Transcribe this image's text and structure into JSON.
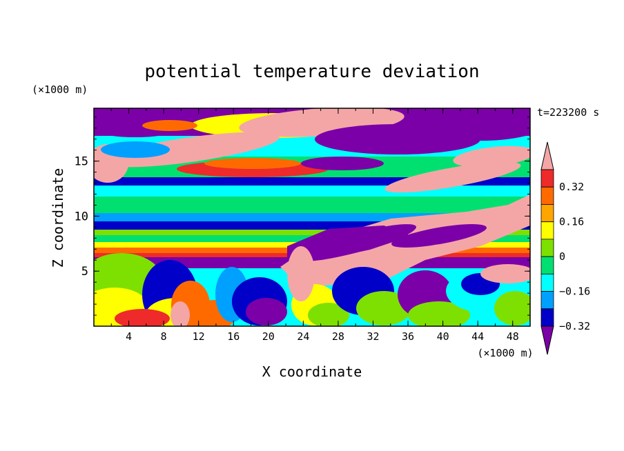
{
  "chart_data": {
    "type": "heatmap",
    "title": "potential temperature deviation",
    "xlabel": "X coordinate",
    "ylabel": "Z coordinate",
    "x_unit": "(×1000 m)",
    "y_unit": "(×1000 m)",
    "time_label": "t=223200 s",
    "xlim": [
      0,
      50
    ],
    "ylim": [
      0,
      19.8
    ],
    "x_ticks": [
      4,
      8,
      12,
      16,
      20,
      24,
      28,
      32,
      36,
      40,
      44,
      48
    ],
    "y_ticks": [
      5,
      10,
      15
    ],
    "colorbar": {
      "levels": [
        -0.4,
        -0.32,
        -0.24,
        -0.16,
        -0.08,
        0,
        0.08,
        0.16,
        0.24,
        0.32,
        0.4
      ],
      "labeled": [
        "0.32",
        "0.16",
        "0",
        "−0.16",
        "−0.32"
      ],
      "colors_top_to_bottom": [
        "#f4a6a6",
        "#ee2a2a",
        "#ff6a00",
        "#ffa500",
        "#ffff00",
        "#7ee000",
        "#00e070",
        "#00ffff",
        "#00a0ff",
        "#0000c8",
        "#7b00a8"
      ]
    }
  }
}
